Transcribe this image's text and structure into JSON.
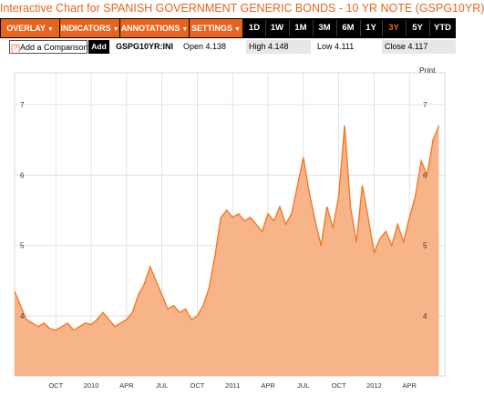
{
  "title": "Interactive Chart for SPANISH GOVERNMENT GENERIC BONDS - 10 YR NOTE (GSPG10YR)",
  "toolbar": {
    "menus": [
      {
        "label": "OVERLAY",
        "icon": "caret-down-icon"
      },
      {
        "label": "INDICATORS",
        "icon": "caret-down-icon"
      },
      {
        "label": "ANNOTATIONS",
        "icon": "caret-down-icon"
      },
      {
        "label": "SETTINGS",
        "icon": "caret-down-icon"
      }
    ],
    "ranges": [
      "1D",
      "1W",
      "1M",
      "3M",
      "6M",
      "1Y",
      "3Y",
      "5Y",
      "YTD"
    ],
    "active_range": "3Y"
  },
  "quote": {
    "compare_help": "[?]",
    "compare_label": "Add a Comparison",
    "add_label": "Add",
    "symbol": "GSPG10YR:INI",
    "open": "Open 4.138",
    "high": "High 4.148",
    "low": "Low 4.111",
    "close": "Close 4.117"
  },
  "print_label": "Print",
  "colors": {
    "accent": "#e8641e",
    "line": "#f07a28",
    "fill": "#f8b489",
    "toolbar": "#000000"
  },
  "chart_data": {
    "type": "area",
    "title": "",
    "xlabel": "",
    "ylabel": "",
    "ylim": [
      3.15,
      7.45
    ],
    "yticks_left": [
      "7",
      "6",
      "5",
      "4"
    ],
    "yticks_right": [
      "7",
      "6",
      "5",
      "4"
    ],
    "ytick_values": [
      7,
      6,
      5,
      4
    ],
    "xtick_labels": [
      "OCT",
      "2010",
      "APR",
      "JUL",
      "OCT",
      "2011",
      "APR",
      "JUL",
      "OCT",
      "2012",
      "APR"
    ],
    "xtick_pos": [
      3.5,
      6.5,
      9.5,
      12.5,
      15.5,
      18.5,
      21.5,
      24.5,
      27.5,
      30.5,
      33.5
    ],
    "xlim": [
      0,
      36.5
    ],
    "grid": true,
    "series": [
      {
        "x": [
          0,
          0.5,
          1,
          1.5,
          2,
          2.5,
          3,
          3.5,
          4,
          4.5,
          5,
          5.5,
          6,
          6.5,
          7,
          7.5,
          8,
          8.5,
          9,
          9.5,
          10,
          10.5,
          11,
          11.5,
          12,
          12.5,
          13,
          13.5,
          14,
          14.5,
          15,
          15.5,
          16,
          16.5,
          17,
          17.5,
          18,
          18.5,
          19,
          19.5,
          20,
          20.5,
          21,
          21.5,
          22,
          22.5,
          23,
          23.5,
          24,
          24.5,
          25,
          25.5,
          26,
          26.5,
          27,
          27.5,
          28,
          28.5,
          29,
          29.5,
          30,
          30.5,
          31,
          31.5,
          32,
          32.5,
          33,
          33.5,
          34,
          34.5,
          35,
          35.5,
          36
        ],
        "y": [
          4.35,
          4.15,
          3.95,
          3.9,
          3.85,
          3.9,
          3.82,
          3.8,
          3.85,
          3.9,
          3.8,
          3.85,
          3.9,
          3.88,
          3.95,
          4.05,
          3.95,
          3.85,
          3.9,
          3.95,
          4.05,
          4.3,
          4.45,
          4.7,
          4.5,
          4.3,
          4.1,
          4.15,
          4.05,
          4.1,
          3.95,
          4.0,
          4.15,
          4.4,
          4.85,
          5.4,
          5.5,
          5.4,
          5.45,
          5.35,
          5.4,
          5.3,
          5.2,
          5.45,
          5.35,
          5.55,
          5.3,
          5.45,
          5.85,
          6.25,
          5.75,
          5.35,
          5.0,
          5.55,
          5.25,
          5.7,
          6.7,
          5.55,
          5.05,
          5.85,
          5.4,
          4.9,
          5.1,
          5.2,
          5.0,
          5.3,
          5.05,
          5.4,
          5.7,
          6.2,
          6.0,
          6.5,
          6.7
        ]
      }
    ]
  }
}
